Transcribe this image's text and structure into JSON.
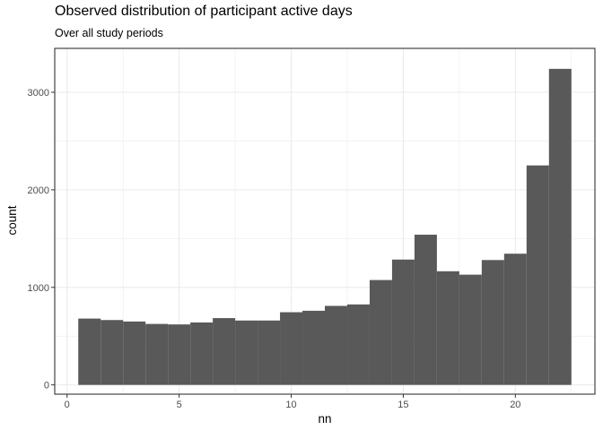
{
  "chart_data": {
    "type": "bar",
    "title": "Observed distribution of participant active days",
    "subtitle": "Over all study periods",
    "xlabel": "nn",
    "ylabel": "count",
    "x": [
      1,
      2,
      3,
      4,
      5,
      6,
      7,
      8,
      9,
      10,
      11,
      12,
      13,
      14,
      15,
      16,
      17,
      18,
      19,
      20,
      21,
      22
    ],
    "values": [
      680,
      665,
      650,
      625,
      620,
      640,
      685,
      660,
      660,
      745,
      760,
      810,
      825,
      1075,
      1285,
      1540,
      1165,
      1130,
      1280,
      1345,
      2250,
      3240
    ],
    "bin_width": 1,
    "xlim": [
      -0.55,
      23.55
    ],
    "ylim": [
      -95,
      3450
    ],
    "x_ticks": [
      0,
      5,
      10,
      15,
      20
    ],
    "y_ticks": [
      0,
      1000,
      2000,
      3000
    ],
    "grid": true,
    "bar_color": "#595959",
    "grid_color": "#ebebeb",
    "panel_border_color": "#333333"
  }
}
